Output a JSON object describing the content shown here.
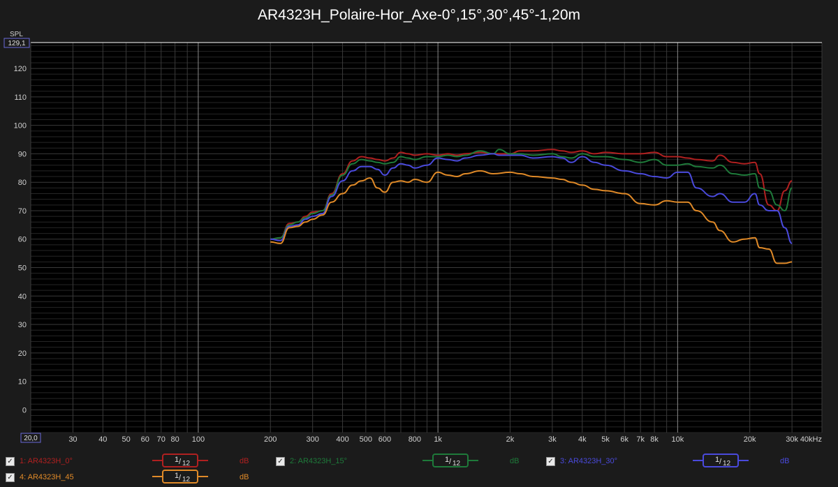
{
  "title": "AR4323H_Polaire-Hor_Axe-0°,15°,30°,45°-1,20m",
  "ylabel": "SPL",
  "y_top_readout": "129,1",
  "x_left_readout": "20,0",
  "legend": [
    {
      "id": "1",
      "label": "1: AR4323H_0°",
      "smoothing_num": "1",
      "smoothing_den": "12",
      "unit": "dB",
      "color": "#b02020",
      "checked": "✓"
    },
    {
      "id": "2",
      "label": "2: AR4323H_15°",
      "smoothing_num": "1",
      "smoothing_den": "12",
      "unit": "dB",
      "color": "#1e7a3a",
      "checked": "✓"
    },
    {
      "id": "3",
      "label": "3: AR4323H_30°",
      "smoothing_num": "1",
      "smoothing_den": "12",
      "unit": "dB",
      "color": "#4a4adc",
      "checked": "✓"
    },
    {
      "id": "4",
      "label": "4: AR4323H_45",
      "smoothing_num": "1",
      "smoothing_den": "12",
      "unit": "dB",
      "color": "#e08a28",
      "checked": "✓"
    }
  ],
  "chart_data": {
    "type": "line",
    "title": "AR4323H_Polaire-Hor_Axe-0°,15°,30°,45°-1,20m",
    "ylabel": "SPL",
    "xlabel": "",
    "x_scale": "log",
    "xlim": [
      20,
      40000
    ],
    "ylim": [
      -8,
      129.1
    ],
    "grid": true,
    "legend_position": "bottom",
    "y_ticks": [
      0,
      10,
      20,
      30,
      40,
      50,
      60,
      70,
      80,
      90,
      100,
      110,
      120
    ],
    "x_ticks": [
      {
        "v": 30,
        "label": "30"
      },
      {
        "v": 40,
        "label": "40"
      },
      {
        "v": 50,
        "label": "50"
      },
      {
        "v": 60,
        "label": "60"
      },
      {
        "v": 70,
        "label": "70"
      },
      {
        "v": 80,
        "label": "80"
      },
      {
        "v": 100,
        "label": "100"
      },
      {
        "v": 200,
        "label": "200"
      },
      {
        "v": 300,
        "label": "300"
      },
      {
        "v": 400,
        "label": "400"
      },
      {
        "v": 500,
        "label": "500"
      },
      {
        "v": 600,
        "label": "600"
      },
      {
        "v": 800,
        "label": "800"
      },
      {
        "v": 1000,
        "label": "1k"
      },
      {
        "v": 2000,
        "label": "2k"
      },
      {
        "v": 3000,
        "label": "3k"
      },
      {
        "v": 4000,
        "label": "4k"
      },
      {
        "v": 5000,
        "label": "5k"
      },
      {
        "v": 6000,
        "label": "6k"
      },
      {
        "v": 7000,
        "label": "7k"
      },
      {
        "v": 8000,
        "label": "8k"
      },
      {
        "v": 10000,
        "label": "10k"
      },
      {
        "v": 20000,
        "label": "20k"
      },
      {
        "v": 30000,
        "label": "30k"
      },
      {
        "v": 40000,
        "label": "40kHz"
      }
    ],
    "series": [
      {
        "name": "AR4323H_0°",
        "color": "#b02020",
        "points": [
          [
            200,
            60
          ],
          [
            220,
            60.5
          ],
          [
            240,
            65.5
          ],
          [
            260,
            66
          ],
          [
            280,
            68
          ],
          [
            300,
            69.5
          ],
          [
            330,
            70
          ],
          [
            360,
            76
          ],
          [
            400,
            83
          ],
          [
            440,
            87.5
          ],
          [
            480,
            89
          ],
          [
            520,
            88.5
          ],
          [
            560,
            88
          ],
          [
            600,
            87.5
          ],
          [
            650,
            88.5
          ],
          [
            700,
            90.5
          ],
          [
            750,
            90
          ],
          [
            800,
            89.5
          ],
          [
            900,
            90
          ],
          [
            1000,
            89.5
          ],
          [
            1100,
            90
          ],
          [
            1200,
            89.5
          ],
          [
            1300,
            90
          ],
          [
            1500,
            90.5
          ],
          [
            1700,
            90
          ],
          [
            2000,
            90
          ],
          [
            2200,
            91
          ],
          [
            2500,
            91
          ],
          [
            3000,
            91.5
          ],
          [
            3300,
            91
          ],
          [
            3600,
            90.5
          ],
          [
            4000,
            91
          ],
          [
            4500,
            90
          ],
          [
            5000,
            90.5
          ],
          [
            6000,
            90
          ],
          [
            7000,
            90
          ],
          [
            8000,
            90.5
          ],
          [
            9000,
            89
          ],
          [
            10000,
            89
          ],
          [
            11000,
            88.5
          ],
          [
            12000,
            88
          ],
          [
            14000,
            87.5
          ],
          [
            15000,
            89.5
          ],
          [
            17000,
            87
          ],
          [
            19000,
            86.5
          ],
          [
            21000,
            87
          ],
          [
            22000,
            83
          ],
          [
            24000,
            72
          ],
          [
            26000,
            70
          ],
          [
            28000,
            77
          ],
          [
            30000,
            80.5
          ]
        ]
      },
      {
        "name": "AR4323H_15°",
        "color": "#1e7a3a",
        "points": [
          [
            200,
            60
          ],
          [
            220,
            60.5
          ],
          [
            240,
            65
          ],
          [
            260,
            66
          ],
          [
            280,
            67.5
          ],
          [
            300,
            69
          ],
          [
            330,
            70
          ],
          [
            360,
            75.5
          ],
          [
            400,
            82.5
          ],
          [
            440,
            86.5
          ],
          [
            480,
            88
          ],
          [
            520,
            87.5
          ],
          [
            560,
            87
          ],
          [
            600,
            86.5
          ],
          [
            650,
            87
          ],
          [
            700,
            89
          ],
          [
            750,
            88.5
          ],
          [
            800,
            88
          ],
          [
            900,
            89
          ],
          [
            1000,
            89
          ],
          [
            1100,
            89.5
          ],
          [
            1200,
            89
          ],
          [
            1300,
            89.5
          ],
          [
            1500,
            91
          ],
          [
            1700,
            90
          ],
          [
            1800,
            91.5
          ],
          [
            2000,
            90
          ],
          [
            2200,
            90
          ],
          [
            2500,
            89.5
          ],
          [
            3000,
            90
          ],
          [
            3300,
            89
          ],
          [
            3600,
            88.5
          ],
          [
            4000,
            90
          ],
          [
            4500,
            89
          ],
          [
            5000,
            89
          ],
          [
            6000,
            88
          ],
          [
            7000,
            87
          ],
          [
            8000,
            88
          ],
          [
            9000,
            86
          ],
          [
            10000,
            86
          ],
          [
            11000,
            86.5
          ],
          [
            12000,
            85.5
          ],
          [
            14000,
            85
          ],
          [
            15000,
            86
          ],
          [
            17000,
            83
          ],
          [
            19000,
            82.5
          ],
          [
            21000,
            83
          ],
          [
            22000,
            78
          ],
          [
            24000,
            77
          ],
          [
            26000,
            72
          ],
          [
            28000,
            70
          ],
          [
            30000,
            78
          ]
        ]
      },
      {
        "name": "AR4323H_30°",
        "color": "#4a4adc",
        "points": [
          [
            200,
            60
          ],
          [
            220,
            59.5
          ],
          [
            240,
            64.5
          ],
          [
            260,
            65
          ],
          [
            280,
            67
          ],
          [
            300,
            68
          ],
          [
            330,
            69
          ],
          [
            360,
            75
          ],
          [
            400,
            80.5
          ],
          [
            440,
            84
          ],
          [
            480,
            85.5
          ],
          [
            520,
            85.5
          ],
          [
            560,
            84.5
          ],
          [
            600,
            82.5
          ],
          [
            650,
            85
          ],
          [
            700,
            86.5
          ],
          [
            750,
            86
          ],
          [
            800,
            85
          ],
          [
            900,
            86
          ],
          [
            1000,
            88.5
          ],
          [
            1100,
            88
          ],
          [
            1200,
            87.5
          ],
          [
            1300,
            88.5
          ],
          [
            1500,
            89.5
          ],
          [
            1700,
            90
          ],
          [
            1800,
            89.5
          ],
          [
            2000,
            89.5
          ],
          [
            2200,
            89.5
          ],
          [
            2500,
            88.5
          ],
          [
            3000,
            89
          ],
          [
            3300,
            88.5
          ],
          [
            3600,
            87
          ],
          [
            4000,
            89
          ],
          [
            4500,
            87
          ],
          [
            5000,
            86
          ],
          [
            6000,
            84
          ],
          [
            7000,
            83
          ],
          [
            8000,
            82
          ],
          [
            9000,
            81.5
          ],
          [
            10000,
            83.5
          ],
          [
            11000,
            83.5
          ],
          [
            12000,
            78
          ],
          [
            14000,
            75
          ],
          [
            15000,
            76
          ],
          [
            17000,
            73
          ],
          [
            19000,
            73
          ],
          [
            21000,
            76
          ],
          [
            22000,
            72
          ],
          [
            24000,
            70
          ],
          [
            26000,
            70
          ],
          [
            28000,
            64
          ],
          [
            30000,
            58.5
          ]
        ]
      },
      {
        "name": "AR4323H_45",
        "color": "#e08a28",
        "points": [
          [
            200,
            59
          ],
          [
            220,
            58.5
          ],
          [
            240,
            64
          ],
          [
            260,
            64.5
          ],
          [
            280,
            66
          ],
          [
            300,
            67
          ],
          [
            330,
            68.5
          ],
          [
            360,
            73
          ],
          [
            400,
            76
          ],
          [
            440,
            79
          ],
          [
            480,
            80.5
          ],
          [
            520,
            81.5
          ],
          [
            560,
            78
          ],
          [
            600,
            76.5
          ],
          [
            650,
            80
          ],
          [
            700,
            80.5
          ],
          [
            750,
            80
          ],
          [
            800,
            81
          ],
          [
            900,
            80
          ],
          [
            1000,
            83.5
          ],
          [
            1100,
            82.5
          ],
          [
            1200,
            82
          ],
          [
            1300,
            83
          ],
          [
            1500,
            84
          ],
          [
            1700,
            83
          ],
          [
            2000,
            83.5
          ],
          [
            2200,
            83
          ],
          [
            2500,
            82
          ],
          [
            3000,
            81.5
          ],
          [
            3300,
            81
          ],
          [
            3600,
            80
          ],
          [
            4000,
            79
          ],
          [
            4500,
            77.5
          ],
          [
            5000,
            77
          ],
          [
            6000,
            76
          ],
          [
            7000,
            72.5
          ],
          [
            8000,
            72
          ],
          [
            9000,
            73.5
          ],
          [
            10000,
            73
          ],
          [
            11000,
            73
          ],
          [
            12000,
            70
          ],
          [
            14000,
            66
          ],
          [
            15000,
            63
          ],
          [
            17000,
            59
          ],
          [
            19000,
            60
          ],
          [
            21000,
            60.5
          ],
          [
            22000,
            57
          ],
          [
            24000,
            56.5
          ],
          [
            26000,
            51.5
          ],
          [
            28000,
            51.5
          ],
          [
            30000,
            52
          ]
        ]
      }
    ]
  }
}
